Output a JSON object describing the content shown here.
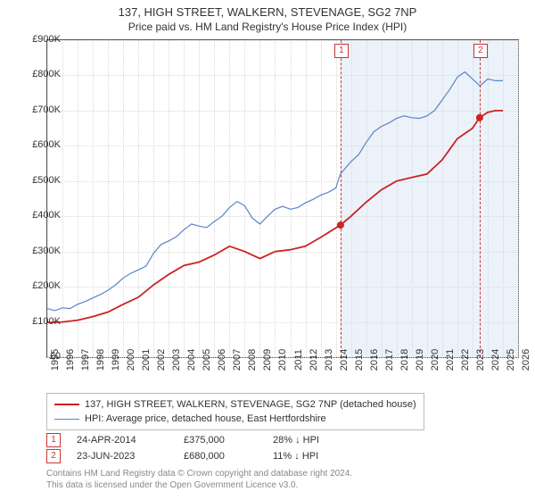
{
  "title": "137, HIGH STREET, WALKERN, STEVENAGE, SG2 7NP",
  "subtitle": "Price paid vs. HM Land Registry's House Price Index (HPI)",
  "chart": {
    "type": "line",
    "background_color": "#ffffff",
    "shaded_recent_color": "#eaf1fa",
    "grid_color": "#d9d9d9",
    "axis_color": "#555555",
    "x": {
      "min": 1995,
      "max": 2026,
      "ticks": [
        1995,
        1996,
        1997,
        1998,
        1999,
        2000,
        2001,
        2002,
        2003,
        2004,
        2005,
        2006,
        2007,
        2008,
        2009,
        2010,
        2011,
        2012,
        2013,
        2014,
        2015,
        2016,
        2017,
        2018,
        2019,
        2020,
        2021,
        2022,
        2023,
        2024,
        2025,
        2026
      ],
      "tick_fontsize": 11
    },
    "y": {
      "min": 0,
      "max": 900000,
      "ticks": [
        0,
        100000,
        200000,
        300000,
        400000,
        500000,
        600000,
        700000,
        800000,
        900000
      ],
      "tick_labels": [
        "£0",
        "£100K",
        "£200K",
        "£300K",
        "£400K",
        "£500K",
        "£600K",
        "£700K",
        "£800K",
        "£900K"
      ],
      "tick_fontsize": 11
    },
    "series": [
      {
        "name": "price_paid",
        "label": "137, HIGH STREET, WALKERN, STEVENAGE, SG2 7NP (detached house)",
        "color": "#cc2222",
        "line_width": 1.8,
        "points": [
          [
            1995.0,
            98000
          ],
          [
            1996.0,
            100000
          ],
          [
            1997.0,
            105000
          ],
          [
            1998.0,
            115000
          ],
          [
            1999.0,
            128000
          ],
          [
            2000.0,
            150000
          ],
          [
            2001.0,
            170000
          ],
          [
            2002.0,
            205000
          ],
          [
            2003.0,
            235000
          ],
          [
            2004.0,
            260000
          ],
          [
            2005.0,
            270000
          ],
          [
            2006.0,
            290000
          ],
          [
            2007.0,
            315000
          ],
          [
            2008.0,
            300000
          ],
          [
            2009.0,
            280000
          ],
          [
            2010.0,
            300000
          ],
          [
            2011.0,
            305000
          ],
          [
            2012.0,
            315000
          ],
          [
            2013.0,
            340000
          ],
          [
            2014.3,
            375000
          ],
          [
            2015.0,
            400000
          ],
          [
            2016.0,
            440000
          ],
          [
            2017.0,
            475000
          ],
          [
            2018.0,
            500000
          ],
          [
            2019.0,
            510000
          ],
          [
            2020.0,
            520000
          ],
          [
            2021.0,
            560000
          ],
          [
            2022.0,
            620000
          ],
          [
            2023.0,
            650000
          ],
          [
            2023.47,
            680000
          ],
          [
            2024.0,
            695000
          ],
          [
            2024.5,
            700000
          ],
          [
            2025.0,
            700000
          ]
        ]
      },
      {
        "name": "hpi",
        "label": "HPI: Average price, detached house, East Hertfordshire",
        "color": "#5b85c8",
        "line_width": 1.2,
        "points": [
          [
            1995.0,
            138000
          ],
          [
            1995.5,
            132000
          ],
          [
            1996.0,
            140000
          ],
          [
            1996.5,
            138000
          ],
          [
            1997.0,
            150000
          ],
          [
            1997.5,
            158000
          ],
          [
            1998.0,
            168000
          ],
          [
            1998.5,
            178000
          ],
          [
            1999.0,
            190000
          ],
          [
            1999.5,
            205000
          ],
          [
            2000.0,
            225000
          ],
          [
            2000.5,
            238000
          ],
          [
            2001.0,
            248000
          ],
          [
            2001.5,
            258000
          ],
          [
            2002.0,
            295000
          ],
          [
            2002.5,
            320000
          ],
          [
            2003.0,
            330000
          ],
          [
            2003.5,
            342000
          ],
          [
            2004.0,
            362000
          ],
          [
            2004.5,
            378000
          ],
          [
            2005.0,
            372000
          ],
          [
            2005.5,
            368000
          ],
          [
            2006.0,
            385000
          ],
          [
            2006.5,
            400000
          ],
          [
            2007.0,
            425000
          ],
          [
            2007.5,
            442000
          ],
          [
            2008.0,
            430000
          ],
          [
            2008.5,
            395000
          ],
          [
            2009.0,
            378000
          ],
          [
            2009.5,
            400000
          ],
          [
            2010.0,
            420000
          ],
          [
            2010.5,
            428000
          ],
          [
            2011.0,
            420000
          ],
          [
            2011.5,
            425000
          ],
          [
            2012.0,
            438000
          ],
          [
            2012.5,
            448000
          ],
          [
            2013.0,
            460000
          ],
          [
            2013.5,
            468000
          ],
          [
            2014.0,
            480000
          ],
          [
            2014.3,
            520000
          ],
          [
            2015.0,
            555000
          ],
          [
            2015.5,
            575000
          ],
          [
            2016.0,
            610000
          ],
          [
            2016.5,
            640000
          ],
          [
            2017.0,
            655000
          ],
          [
            2017.5,
            665000
          ],
          [
            2018.0,
            678000
          ],
          [
            2018.5,
            685000
          ],
          [
            2019.0,
            680000
          ],
          [
            2019.5,
            678000
          ],
          [
            2020.0,
            685000
          ],
          [
            2020.5,
            700000
          ],
          [
            2021.0,
            730000
          ],
          [
            2021.5,
            760000
          ],
          [
            2022.0,
            795000
          ],
          [
            2022.5,
            810000
          ],
          [
            2023.0,
            790000
          ],
          [
            2023.5,
            770000
          ],
          [
            2024.0,
            790000
          ],
          [
            2024.5,
            785000
          ],
          [
            2025.0,
            785000
          ]
        ]
      }
    ],
    "events": [
      {
        "n": "1",
        "x": 2014.31,
        "date": "24-APR-2014",
        "price": "£375,000",
        "diff_pct": "28%",
        "diff_dir": "↓",
        "diff_suffix": "HPI",
        "marker_y": 375000
      },
      {
        "n": "2",
        "x": 2023.47,
        "date": "23-JUN-2023",
        "price": "£680,000",
        "diff_pct": "11%",
        "diff_dir": "↓",
        "diff_suffix": "HPI",
        "marker_y": 680000
      }
    ],
    "shade_from_x": 2014.31,
    "shade_to_x": 2026
  },
  "footer": {
    "line1": "Contains HM Land Registry data © Crown copyright and database right 2024.",
    "line2": "This data is licensed under the Open Government Licence v3.0."
  }
}
